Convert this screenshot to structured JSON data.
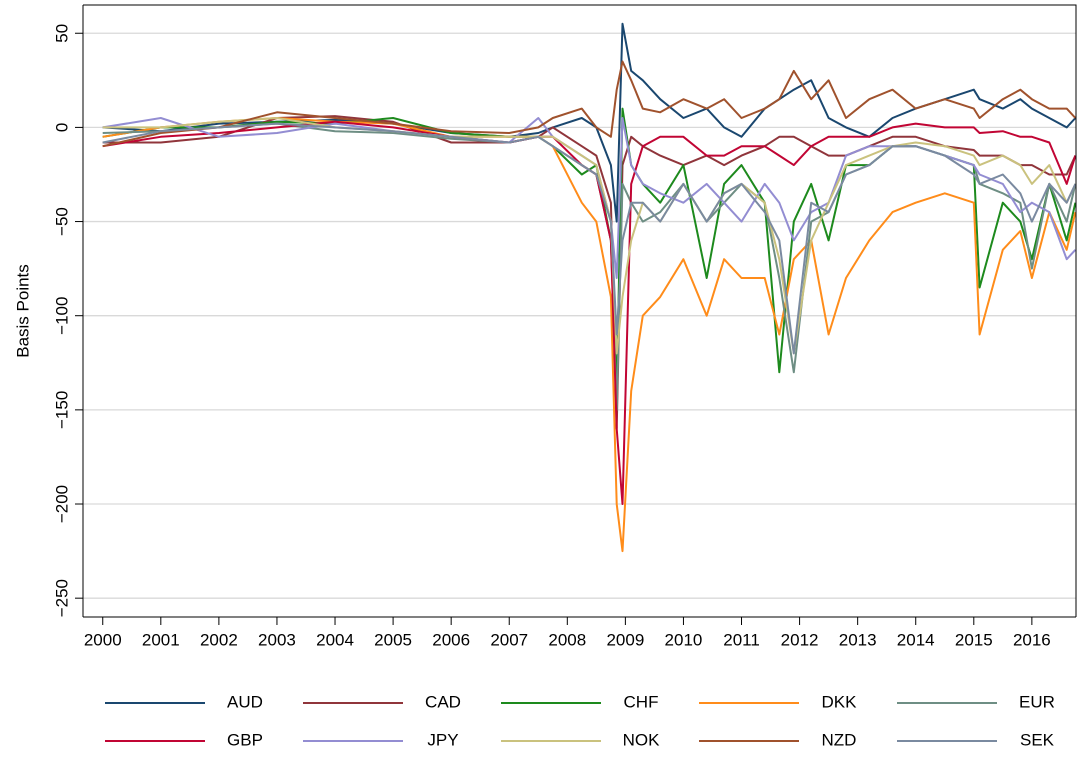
{
  "chart_data": {
    "type": "line",
    "y_label": "Basis Points",
    "x": [
      2000,
      2001,
      2002,
      2003,
      2004,
      2005,
      2006,
      2007,
      2007.5,
      2007.75,
      2008.25,
      2008.5,
      2008.75,
      2008.85,
      2008.95,
      2009.1,
      2009.3,
      2009.6,
      2010,
      2010.4,
      2010.7,
      2011,
      2011.4,
      2011.65,
      2011.9,
      2012.2,
      2012.5,
      2012.8,
      2013.2,
      2013.6,
      2014,
      2014.5,
      2015,
      2015.1,
      2015.5,
      2015.8,
      2016,
      2016.3,
      2016.6,
      2016.75
    ],
    "xlim": [
      1999.66,
      2016.76
    ],
    "xticks": [
      2000,
      2001,
      2002,
      2003,
      2004,
      2005,
      2006,
      2007,
      2008,
      2009,
      2010,
      2011,
      2012,
      2013,
      2014,
      2015,
      2016
    ],
    "ylim": [
      -260,
      65
    ],
    "yticks": [
      50,
      0,
      {
        "value": -50,
        "label": "−50"
      },
      {
        "value": -100,
        "label": "−100"
      },
      {
        "value": -150,
        "label": "−150"
      },
      {
        "value": -200,
        "label": "−200"
      },
      {
        "value": -250,
        "label": "−250"
      }
    ],
    "grid": true,
    "series": [
      {
        "name": "AUD",
        "color": "#1a476f",
        "values": [
          0,
          -2,
          2,
          3,
          4,
          2,
          -3,
          -5,
          -3,
          0,
          5,
          0,
          -20,
          -50,
          55,
          30,
          25,
          15,
          5,
          10,
          0,
          -5,
          10,
          15,
          20,
          25,
          5,
          0,
          -5,
          5,
          10,
          15,
          20,
          15,
          10,
          15,
          10,
          5,
          0,
          5
        ]
      },
      {
        "name": "CAD",
        "color": "#90353b",
        "values": [
          -8,
          -8,
          -5,
          5,
          6,
          3,
          -8,
          -8,
          -5,
          0,
          -10,
          -15,
          -40,
          -160,
          -20,
          -5,
          -10,
          -15,
          -20,
          -15,
          -20,
          -15,
          -10,
          -5,
          -5,
          -10,
          -15,
          -15,
          -10,
          -5,
          -5,
          -10,
          -12,
          -15,
          -15,
          -20,
          -20,
          -25,
          -25,
          -15
        ]
      },
      {
        "name": "CHF",
        "color": "#1d8a1d",
        "values": [
          -5,
          0,
          0,
          3,
          2,
          5,
          -3,
          -5,
          -5,
          -10,
          -25,
          -20,
          -60,
          -140,
          10,
          -20,
          -30,
          -40,
          -20,
          -80,
          -30,
          -20,
          -40,
          -130,
          -50,
          -30,
          -60,
          -20,
          -20,
          -10,
          -10,
          -15,
          -20,
          -85,
          -40,
          -50,
          -70,
          -30,
          -60,
          -40
        ]
      },
      {
        "name": "DKK",
        "color": "#ff8c1a",
        "values": [
          -5,
          0,
          3,
          5,
          3,
          2,
          -5,
          -5,
          -5,
          -10,
          -40,
          -50,
          -90,
          -200,
          -225,
          -140,
          -100,
          -90,
          -70,
          -100,
          -70,
          -80,
          -80,
          -110,
          -70,
          -60,
          -110,
          -80,
          -60,
          -45,
          -40,
          -35,
          -40,
          -110,
          -65,
          -55,
          -80,
          -45,
          -65,
          -45
        ]
      },
      {
        "name": "EUR",
        "color": "#6e8e84",
        "values": [
          -3,
          -2,
          0,
          2,
          -2,
          -3,
          -6,
          -8,
          -5,
          -10,
          -20,
          -25,
          -60,
          -150,
          -30,
          -40,
          -50,
          -45,
          -30,
          -50,
          -40,
          -30,
          -40,
          -80,
          -130,
          -50,
          -45,
          -25,
          -20,
          -10,
          -10,
          -15,
          -20,
          -30,
          -35,
          -40,
          -75,
          -30,
          -50,
          -30
        ]
      },
      {
        "name": "GBP",
        "color": "#c10534",
        "values": [
          -10,
          -5,
          -3,
          0,
          3,
          0,
          -5,
          -8,
          -5,
          -5,
          -20,
          -25,
          -60,
          -160,
          -200,
          -30,
          -10,
          -5,
          -5,
          -15,
          -15,
          -10,
          -10,
          -15,
          -20,
          -10,
          -5,
          -5,
          -5,
          0,
          2,
          0,
          0,
          -3,
          -2,
          -5,
          -5,
          -8,
          -30,
          -15
        ]
      },
      {
        "name": "JPY",
        "color": "#938dd2",
        "values": [
          0,
          5,
          -5,
          -3,
          2,
          -2,
          -5,
          -8,
          5,
          -5,
          -15,
          -20,
          -50,
          -80,
          5,
          -20,
          -30,
          -35,
          -40,
          -30,
          -40,
          -50,
          -30,
          -40,
          -60,
          -45,
          -40,
          -15,
          -10,
          -10,
          -10,
          -15,
          -20,
          -25,
          -30,
          -45,
          -40,
          -45,
          -70,
          -65
        ]
      },
      {
        "name": "NOK",
        "color": "#cac27e",
        "values": [
          0,
          0,
          3,
          5,
          0,
          -2,
          -5,
          -5,
          -5,
          -5,
          -15,
          -20,
          -50,
          -120,
          -90,
          -60,
          -40,
          -50,
          -30,
          -50,
          -35,
          -30,
          -40,
          -70,
          -120,
          -60,
          -40,
          -20,
          -15,
          -10,
          -8,
          -10,
          -15,
          -20,
          -15,
          -20,
          -30,
          -20,
          -40,
          -30
        ]
      },
      {
        "name": "NZD",
        "color": "#a0522d",
        "values": [
          -10,
          -3,
          0,
          8,
          5,
          2,
          -2,
          -3,
          0,
          5,
          10,
          0,
          -5,
          20,
          35,
          25,
          10,
          8,
          15,
          10,
          15,
          5,
          10,
          15,
          30,
          15,
          25,
          5,
          15,
          20,
          10,
          15,
          10,
          5,
          15,
          20,
          15,
          10,
          10,
          5
        ]
      },
      {
        "name": "SEK",
        "color": "#7a8aa0",
        "values": [
          -8,
          -2,
          0,
          2,
          0,
          -2,
          -5,
          -8,
          -5,
          -10,
          -20,
          -25,
          -50,
          -110,
          -60,
          -40,
          -40,
          -50,
          -30,
          -50,
          -35,
          -30,
          -45,
          -60,
          -120,
          -40,
          -45,
          -25,
          -20,
          -10,
          -10,
          -15,
          -25,
          -30,
          -25,
          -35,
          -50,
          -30,
          -40,
          -30
        ]
      }
    ]
  }
}
